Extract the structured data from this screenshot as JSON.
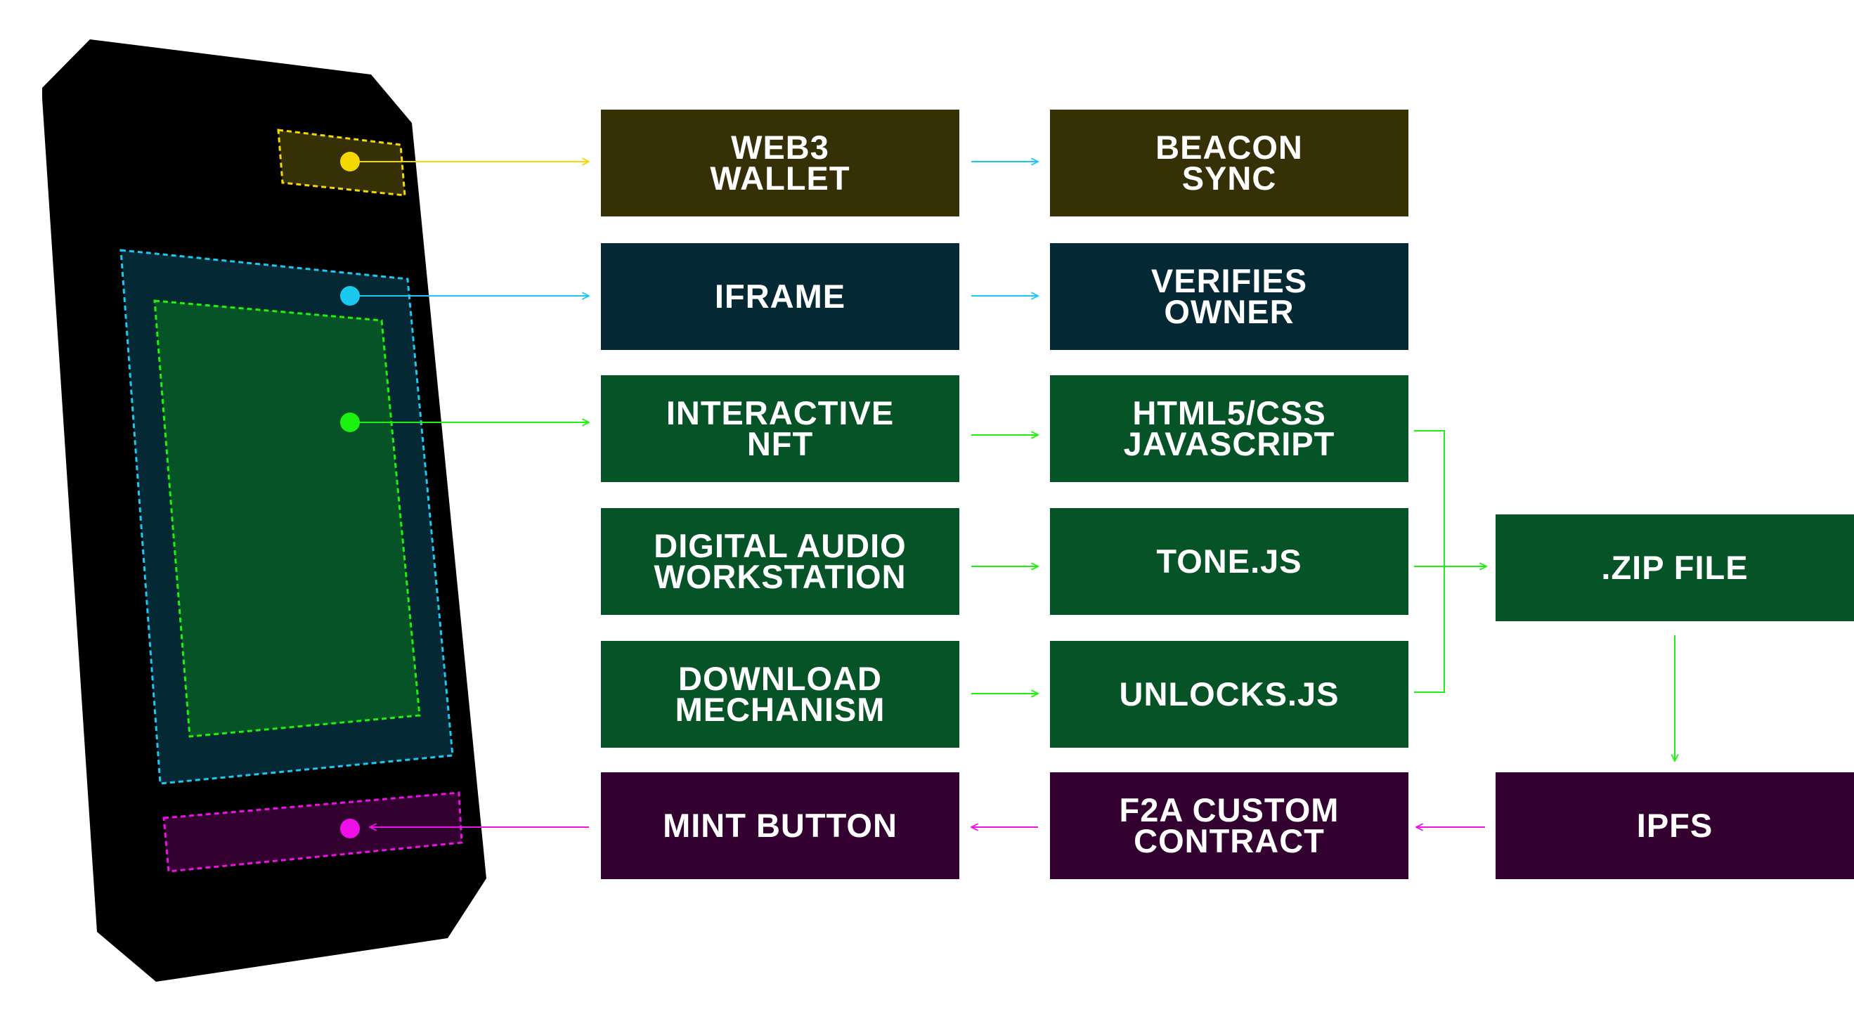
{
  "colors": {
    "device": "#000000",
    "wallet_fill": "#363006",
    "iframe_fill": "#042834",
    "nft_fill": "#055327",
    "ipfs_fill": "#330130",
    "yellow": "#f5d800",
    "cyan": "#1ac8f0",
    "green": "#1df10f",
    "magenta": "#ee10e6",
    "text": "#ffffff"
  },
  "boxes": {
    "web3_wallet": [
      "WEB3",
      "WALLET"
    ],
    "beacon_sync": [
      "BEACON",
      "SYNC"
    ],
    "iframe": [
      "IFRAME"
    ],
    "verifies_owner": [
      "VERIFIES",
      "OWNER"
    ],
    "interactive_nft": [
      "INTERACTIVE",
      "NFT"
    ],
    "html5_css": [
      "HTML5/CSS",
      "JAVASCRIPT"
    ],
    "digital_audio": [
      "DIGITAL AUDIO",
      "WORKSTATION"
    ],
    "tone_js": [
      "TONE.JS"
    ],
    "download_mechanism": [
      "DOWNLOAD",
      "MECHANISM"
    ],
    "unlocks_js": [
      "UNLOCKS.JS"
    ],
    "zip_file": [
      ".ZIP FILE"
    ],
    "mint_button": [
      "MINT BUTTON"
    ],
    "f2a_contract": [
      "F2A CUSTOM",
      "CONTRACT"
    ],
    "ipfs": [
      "IPFS"
    ]
  }
}
